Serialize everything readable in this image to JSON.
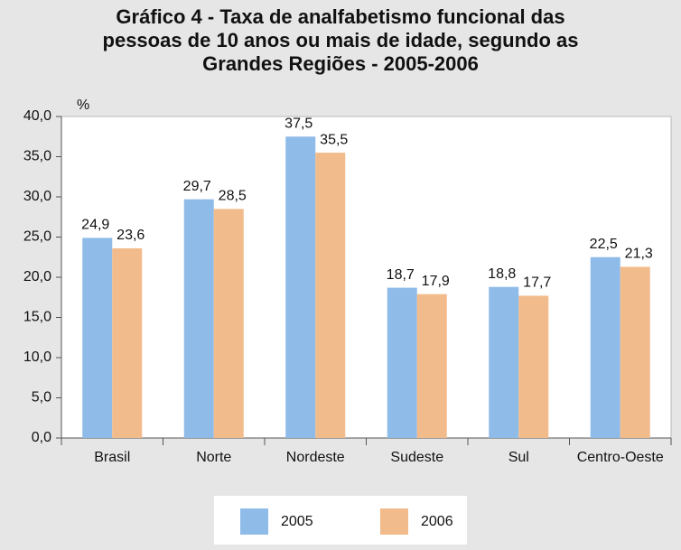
{
  "chart_data": {
    "type": "bar",
    "title": "Gráfico 4 - Taxa de analfabetismo funcional das pessoas de 10 anos ou mais de idade, segundo as Grandes Regiões - 2005-2006",
    "y_label": "%",
    "categories": [
      "Brasil",
      "Norte",
      "Nordeste",
      "Sudeste",
      "Sul",
      "Centro-Oeste"
    ],
    "series": [
      {
        "name": "2005",
        "color": "#8fbbe8",
        "values": [
          24.9,
          29.7,
          37.5,
          18.7,
          18.8,
          22.5
        ],
        "value_labels": [
          "24,9",
          "29,7",
          "37,5",
          "18,7",
          "18,8",
          "22,5"
        ]
      },
      {
        "name": "2006",
        "color": "#f2bb8c",
        "values": [
          23.6,
          28.5,
          35.5,
          17.9,
          17.7,
          21.3
        ],
        "value_labels": [
          "23,6",
          "28,5",
          "35,5",
          "17,9",
          "17,7",
          "21,3"
        ]
      }
    ],
    "ylim": [
      0,
      40
    ],
    "yticks": [
      {
        "value": 0,
        "label": "0,0"
      },
      {
        "value": 5,
        "label": "5,0"
      },
      {
        "value": 10,
        "label": "10,0"
      },
      {
        "value": 15,
        "label": "15,0"
      },
      {
        "value": 20,
        "label": "20,0"
      },
      {
        "value": 25,
        "label": "25,0"
      },
      {
        "value": 30,
        "label": "30,0"
      },
      {
        "value": 35,
        "label": "35,0"
      },
      {
        "value": 40,
        "label": "40,0"
      }
    ],
    "grid": false,
    "legend": "bottom"
  }
}
